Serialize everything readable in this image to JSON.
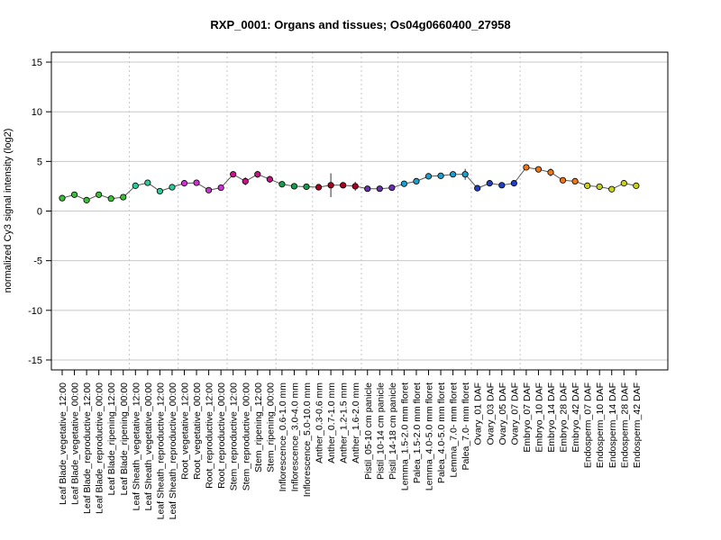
{
  "chart_data": {
    "type": "line",
    "title": "RXP_0001: Organs and tissues; Os04g0660400_27958",
    "xlabel": "",
    "ylabel": "normalized Cy3 signal intensity (log2)",
    "ylim": [
      -16,
      16
    ],
    "yticks": [
      -15,
      -10,
      -5,
      0,
      5,
      10,
      15
    ],
    "grid": true,
    "legend": "none",
    "categories": [
      "Leaf Blade_vegetative_12:00",
      "Leaf Blade_vegetative_00:00",
      "Leaf Blade_reproductive_12:00",
      "Leaf Blade_reproductive_00:00",
      "Leaf Blade_ripening_12:00",
      "Leaf Blade_ripening_00:00",
      "Leaf Sheath_vegetative_12:00",
      "Leaf Sheath_vegetative_00:00",
      "Leaf Sheath_reproductive_12:00",
      "Leaf Sheath_reproductive_00:00",
      "Root_vegetative_12:00",
      "Root_vegetative_00:00",
      "Root_reproductive_12:00",
      "Root_reproductive_00:00",
      "Stem_reproductive_12:00",
      "Stem_reproductive_00:00",
      "Stem_ripening_12:00",
      "Stem_ripening_00:00",
      "Inflorescence_0.6-1.0 mm",
      "Inflorescence_3.0-4.0 mm",
      "Inflorescence_5.0-10.0 mm",
      "Anther_0.3-0.6 mm",
      "Anther_0.7-1.0 mm",
      "Anther_1.2-1.5 mm",
      "Anther_1.6-2.0 mm",
      "Pistil_05-10 cm panicle",
      "Pistil_10-14 cm panicle",
      "Pistil_14-18 cm panicle",
      "Lemma_1.5-2.0 mm floret",
      "Palea_1.5-2.0 mm floret",
      "Lemma_4.0-5.0 mm floret",
      "Palea_4.0-5.0 mm floret",
      "Lemma_7.0- mm floret",
      "Palea_7.0- mm floret",
      "Ovary_01 DAF",
      "Ovary_03 DAF",
      "Ovary_05 DAF",
      "Ovary_07 DAF",
      "Embryo_07 DAF",
      "Embryo_10 DAF",
      "Embryo_14 DAF",
      "Embryo_28 DAF",
      "Embryo_42 DAF",
      "Endosperm_07 DAF",
      "Endosperm_10 DAF",
      "Endosperm_14 DAF",
      "Endosperm_28 DAF",
      "Endosperm_42 DAF"
    ],
    "values": [
      1.3,
      1.65,
      1.1,
      1.65,
      1.25,
      1.4,
      2.55,
      2.85,
      2.0,
      2.4,
      2.8,
      2.85,
      2.1,
      2.35,
      3.7,
      3.0,
      3.7,
      3.2,
      2.7,
      2.5,
      2.45,
      2.4,
      2.6,
      2.6,
      2.5,
      2.25,
      2.25,
      2.35,
      2.75,
      3.0,
      3.5,
      3.55,
      3.7,
      3.7,
      2.3,
      2.8,
      2.6,
      2.8,
      4.4,
      4.2,
      3.9,
      3.1,
      3.0,
      2.55,
      2.45,
      2.2,
      2.8,
      2.55
    ],
    "errors": [
      0.1,
      0.1,
      0.1,
      0.1,
      0.1,
      0.1,
      0.25,
      0.1,
      0.1,
      0.1,
      0.1,
      0.1,
      0.1,
      0.1,
      0.3,
      0.4,
      0.35,
      0.35,
      0.1,
      0.1,
      0.1,
      0.1,
      1.2,
      0.3,
      0.45,
      0.1,
      0.1,
      0.1,
      0.1,
      0.15,
      0.1,
      0.1,
      0.15,
      0.55,
      0.1,
      0.1,
      0.1,
      0.1,
      0.15,
      0.15,
      0.4,
      0.1,
      0.1,
      0.1,
      0.1,
      0.1,
      0.1,
      0.15
    ],
    "point_colors": [
      "#3dbb3d",
      "#3dbb3d",
      "#3dbb3d",
      "#3dbb3d",
      "#3dbb3d",
      "#3dbb3d",
      "#2ec99a",
      "#2ec99a",
      "#2ec99a",
      "#2ec99a",
      "#cc33cc",
      "#cc33cc",
      "#cc33cc",
      "#cc33cc",
      "#cc1188",
      "#cc1188",
      "#cc1188",
      "#cc1188",
      "#1a9a4a",
      "#1a9a4a",
      "#1a9a4a",
      "#aa0022",
      "#aa0022",
      "#aa0022",
      "#aa0022",
      "#6a2fb0",
      "#6a2fb0",
      "#6a2fb0",
      "#1aa0cc",
      "#1aa0cc",
      "#1aa0cc",
      "#1aa0cc",
      "#1aa0cc",
      "#1aa0cc",
      "#1f3fc8",
      "#1f3fc8",
      "#1f3fc8",
      "#1f3fc8",
      "#ee7711",
      "#ee7711",
      "#ee7711",
      "#ee7711",
      "#ee7711",
      "#c8d21a",
      "#c8d21a",
      "#c8d21a",
      "#c8d21a",
      "#c8d21a"
    ],
    "group_boundaries_after_index": [
      5,
      9,
      13,
      17,
      20,
      24,
      27,
      33,
      37,
      42
    ]
  }
}
